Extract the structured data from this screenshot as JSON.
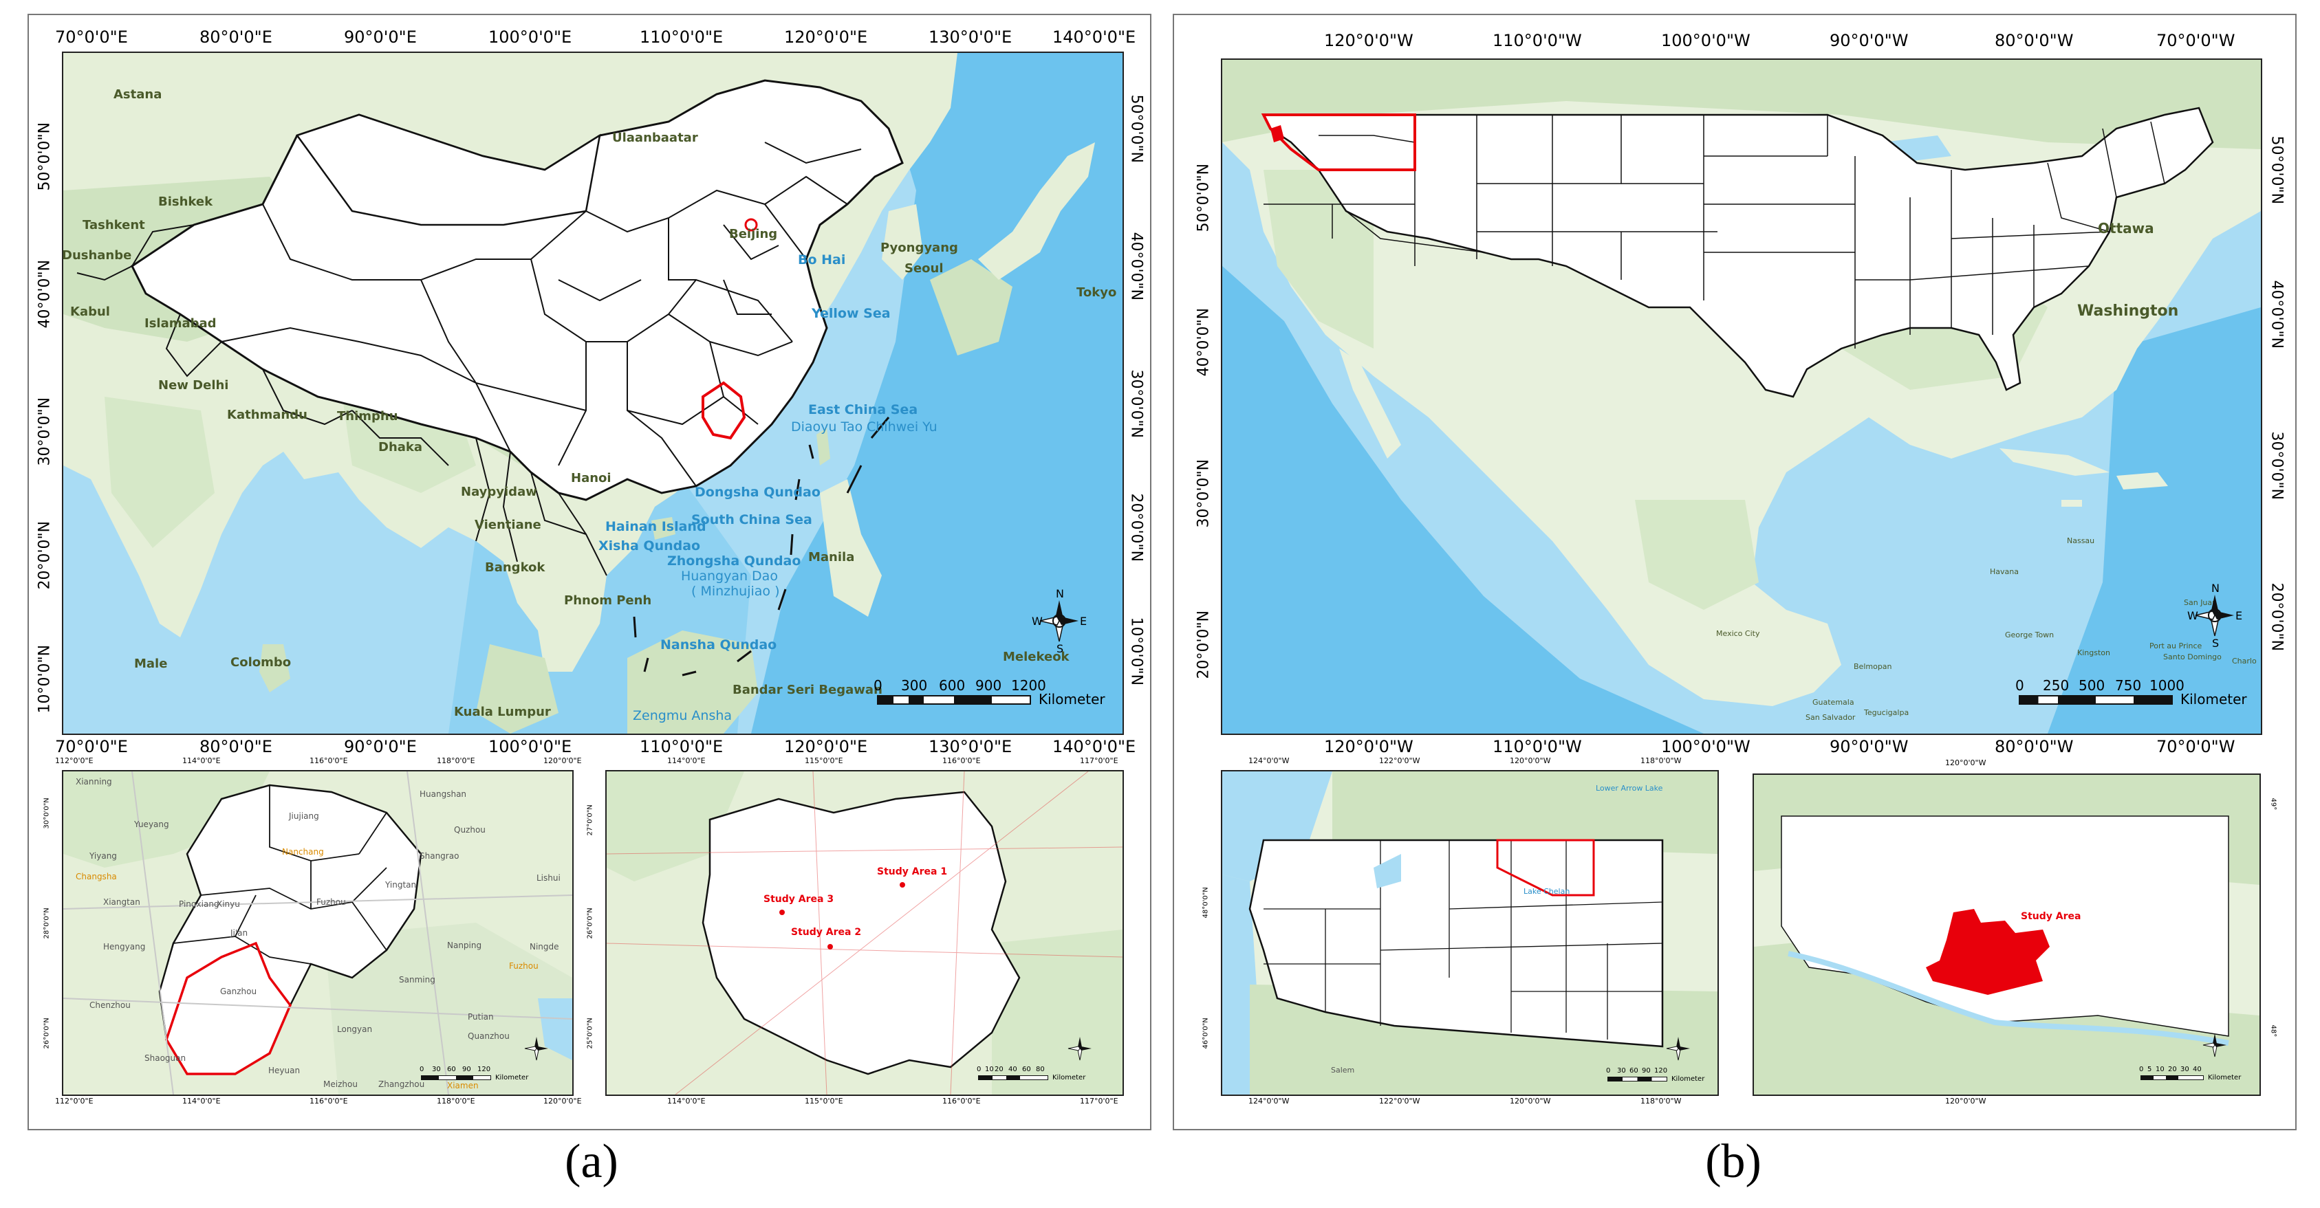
{
  "colors": {
    "water": "#a9dcf4",
    "ocean_deep": "#6cc3ee",
    "land_white": "#ffffff",
    "land_green": "#cfe3c0",
    "boundary": "#111111",
    "highlight": "#e8000b",
    "city_text": "#4a5a2a",
    "sea_text": "#2a8fc9",
    "study_text": "#e8000b",
    "frame": "#222222"
  },
  "panel_a": {
    "caption": "(a)",
    "top_lon_ticks": [
      "70°0'0\"E",
      "80°0'0\"E",
      "90°0'0\"E",
      "100°0'0\"E",
      "110°0'0\"E",
      "120°0'0\"E",
      "130°0'0\"E",
      "140°0'0\"E"
    ],
    "bottom_lon_ticks": [
      "70°0'0\"E",
      "80°0'0\"E",
      "90°0'0\"E",
      "100°0'0\"E",
      "110°0'0\"E",
      "120°0'0\"E",
      "130°0'0\"E",
      "140°0'0\"E"
    ],
    "lat_ticks": [
      "50°0'0\"N",
      "40°0'0\"N",
      "30°0'0\"N",
      "20°0'0\"N",
      "10°0'0\"N"
    ],
    "cities": [
      "Astana",
      "Ulaanbaatar",
      "Bishkek",
      "Tashkent",
      "Dushanbe",
      "Beijing",
      "Pyongyang",
      "Seoul",
      "Tokyo",
      "Kabul",
      "Islamabad",
      "New Delhi",
      "Kathmandu",
      "Thimphu",
      "Dhaka",
      "Hanoi",
      "Naypyidaw",
      "Vientiane",
      "Bangkok",
      "Phnom Penh",
      "Manila",
      "Male",
      "Colombo",
      "Kuala Lumpur",
      "Bandar Seri Begawan",
      "Melekeok"
    ],
    "seas": [
      "Bo Hai",
      "Yellow Sea",
      "East China Sea",
      "Diaoyu Tao",
      "Chihwei Yu",
      "Dongsha Qundao",
      "South China Sea",
      "Hainan Island",
      "Xisha Qundao",
      "Zhongsha Qundao",
      "Huangyan Dao",
      "( Minzhujiao )",
      "Nansha Qundao",
      "Zengmu Ansha"
    ],
    "scale": {
      "ticks": [
        "0",
        "300",
        "600",
        "900",
        "1200"
      ],
      "unit": "Kilometer"
    },
    "compass": {
      "n": "N",
      "s": "S",
      "e": "E",
      "w": "W"
    },
    "inset1": {
      "top_ticks": [
        "112°0'0\"E",
        "114°0'0\"E",
        "116°0'0\"E",
        "118°0'0\"E",
        "120°0'0\"E"
      ],
      "bottom_ticks": [
        "112°0'0\"E",
        "114°0'0\"E",
        "116°0'0\"E",
        "118°0'0\"E",
        "120°0'0\"E"
      ],
      "lat_ticks": [
        "30°0'0\"N",
        "28°0'0\"N",
        "26°0'0\"N"
      ],
      "cities": [
        "Xianning",
        "Huangshan",
        "Yueyang",
        "Jiujiang",
        "Quzhou",
        "Yiyang",
        "Nanchang",
        "Changsha",
        "Shangrao",
        "Lishui",
        "Xiangtan",
        "Fuzhou",
        "Yingtan",
        "Pingxiang",
        "Xinyu",
        "Ji'an",
        "Hengyang",
        "Nanping",
        "Ningde",
        "Sanming",
        "Ganzhou",
        "Fuzhou",
        "Chenzhou",
        "Longyan",
        "Putian",
        "Shaoguan",
        "Quanzhou",
        "Heyuan",
        "Meizhou",
        "Zhangzhou",
        "Xiamen"
      ],
      "scale": {
        "ticks": [
          "0",
          "30",
          "60",
          "90",
          "120"
        ],
        "unit": "Kilometer"
      }
    },
    "inset2": {
      "top_ticks": [
        "114°0'0\"E",
        "115°0'0\"E",
        "116°0'0\"E",
        "117°0'0\"E"
      ],
      "bottom_ticks": [
        "114°0'0\"E",
        "115°0'0\"E",
        "116°0'0\"E",
        "117°0'0\"E"
      ],
      "lat_ticks": [
        "27°0'0\"N",
        "26°0'0\"N",
        "25°0'0\"N"
      ],
      "study_areas": [
        "Study Area 1",
        "Study Area 3",
        "Study Area 2"
      ],
      "scale": {
        "ticks": [
          "0",
          "10",
          "20",
          "40",
          "60",
          "80"
        ],
        "unit": "Kilometer"
      }
    }
  },
  "panel_b": {
    "caption": "(b)",
    "lon_ticks": [
      "120°0'0\"W",
      "110°0'0\"W",
      "100°0'0\"W",
      "90°0'0\"W",
      "80°0'0\"W",
      "70°0'0\"W"
    ],
    "lat_ticks": [
      "50°0'0\"N",
      "40°0'0\"N",
      "30°0'0\"N",
      "20°0'0\"N"
    ],
    "cities": [
      "Ottawa",
      "Washington",
      "Havana",
      "Nassau",
      "Mexico City",
      "Kingston",
      "George Town",
      "Port au Prince",
      "Santo Domingo",
      "San Juan",
      "Belmopan",
      "Guatemala",
      "San Salvador",
      "Tegucigalpa",
      "Charlo"
    ],
    "scale": {
      "ticks": [
        "0",
        "250",
        "500",
        "750",
        "1000"
      ],
      "unit": "Kilometer"
    },
    "compass": {
      "n": "N",
      "s": "S",
      "e": "E",
      "w": "W"
    },
    "inset1": {
      "top_ticks": [
        "124°0'0\"W",
        "122°0'0\"W",
        "120°0'0\"W",
        "118°0'0\"W"
      ],
      "bottom_ticks": [
        "124°0'0\"W",
        "122°0'0\"W",
        "120°0'0\"W",
        "118°0'0\"W"
      ],
      "lat_ticks": [
        "48°0'0\"N",
        "46°0'0\"N"
      ],
      "labels": [
        "Lake Chelan",
        "Lower Arrow Lake",
        "Salem"
      ],
      "scale": {
        "ticks": [
          "0",
          "30",
          "60",
          "90",
          "120"
        ],
        "unit": "Kilometer"
      }
    },
    "inset2": {
      "top_ticks": [
        "120°0'0\"W"
      ],
      "bottom_ticks": [
        "120°0'0\"W"
      ],
      "lat_ticks": [
        "49°",
        "48°"
      ],
      "study_area": "Study Area",
      "scale": {
        "ticks": [
          "0",
          "5",
          "10",
          "20",
          "30",
          "40"
        ],
        "unit": "Kilometer"
      }
    }
  }
}
